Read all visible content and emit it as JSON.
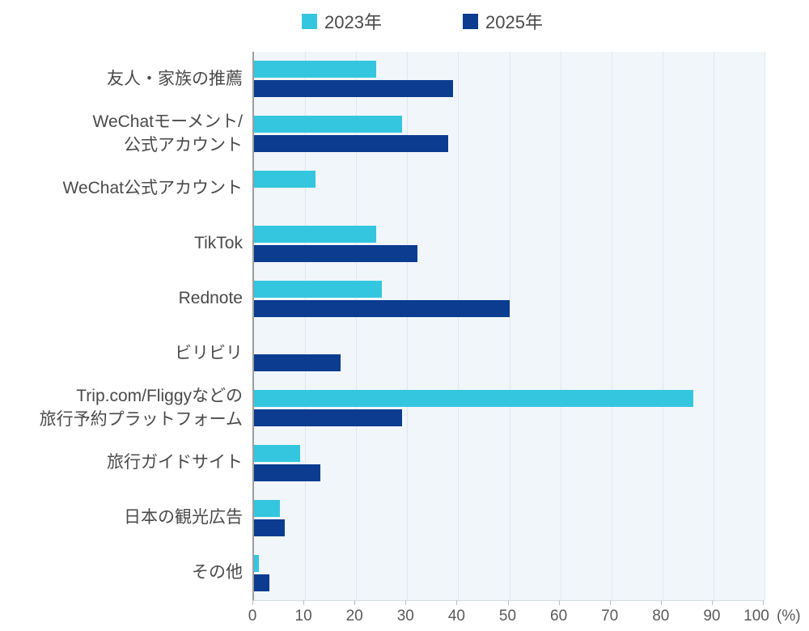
{
  "chart_data": {
    "type": "bar",
    "orientation": "horizontal",
    "title": "",
    "categories": [
      "友人・家族の推薦",
      "WeChatモーメント/\n公式アカウント",
      "WeChat公式アカウント",
      "TikTok",
      "Rednote",
      "ビリビリ",
      "Trip.com/Fliggyなどの\n旅行予約プラットフォーム",
      "旅行ガイドサイト",
      "日本の観光広告",
      "その他"
    ],
    "series": [
      {
        "name": "2023年",
        "color": "#35C6DF",
        "values": [
          24,
          29,
          12,
          24,
          25,
          0,
          86,
          9,
          5,
          1
        ]
      },
      {
        "name": "2025年",
        "color": "#0B3C90",
        "values": [
          39,
          38,
          0,
          32,
          50,
          17,
          29,
          13,
          6,
          3
        ]
      }
    ],
    "xlim": [
      0,
      100
    ],
    "xticks": [
      0,
      10,
      20,
      30,
      40,
      50,
      60,
      70,
      80,
      90,
      100
    ],
    "x_unit": "(%)",
    "grid": true,
    "legend_position": "top",
    "plot_bg": "#F1F6FA",
    "gridline_color": "#DEE7EF",
    "axis_line_color": "#9E9E9E",
    "label_text_color": "#4A4A4A",
    "axis_text_color": "#5A5A5A"
  }
}
